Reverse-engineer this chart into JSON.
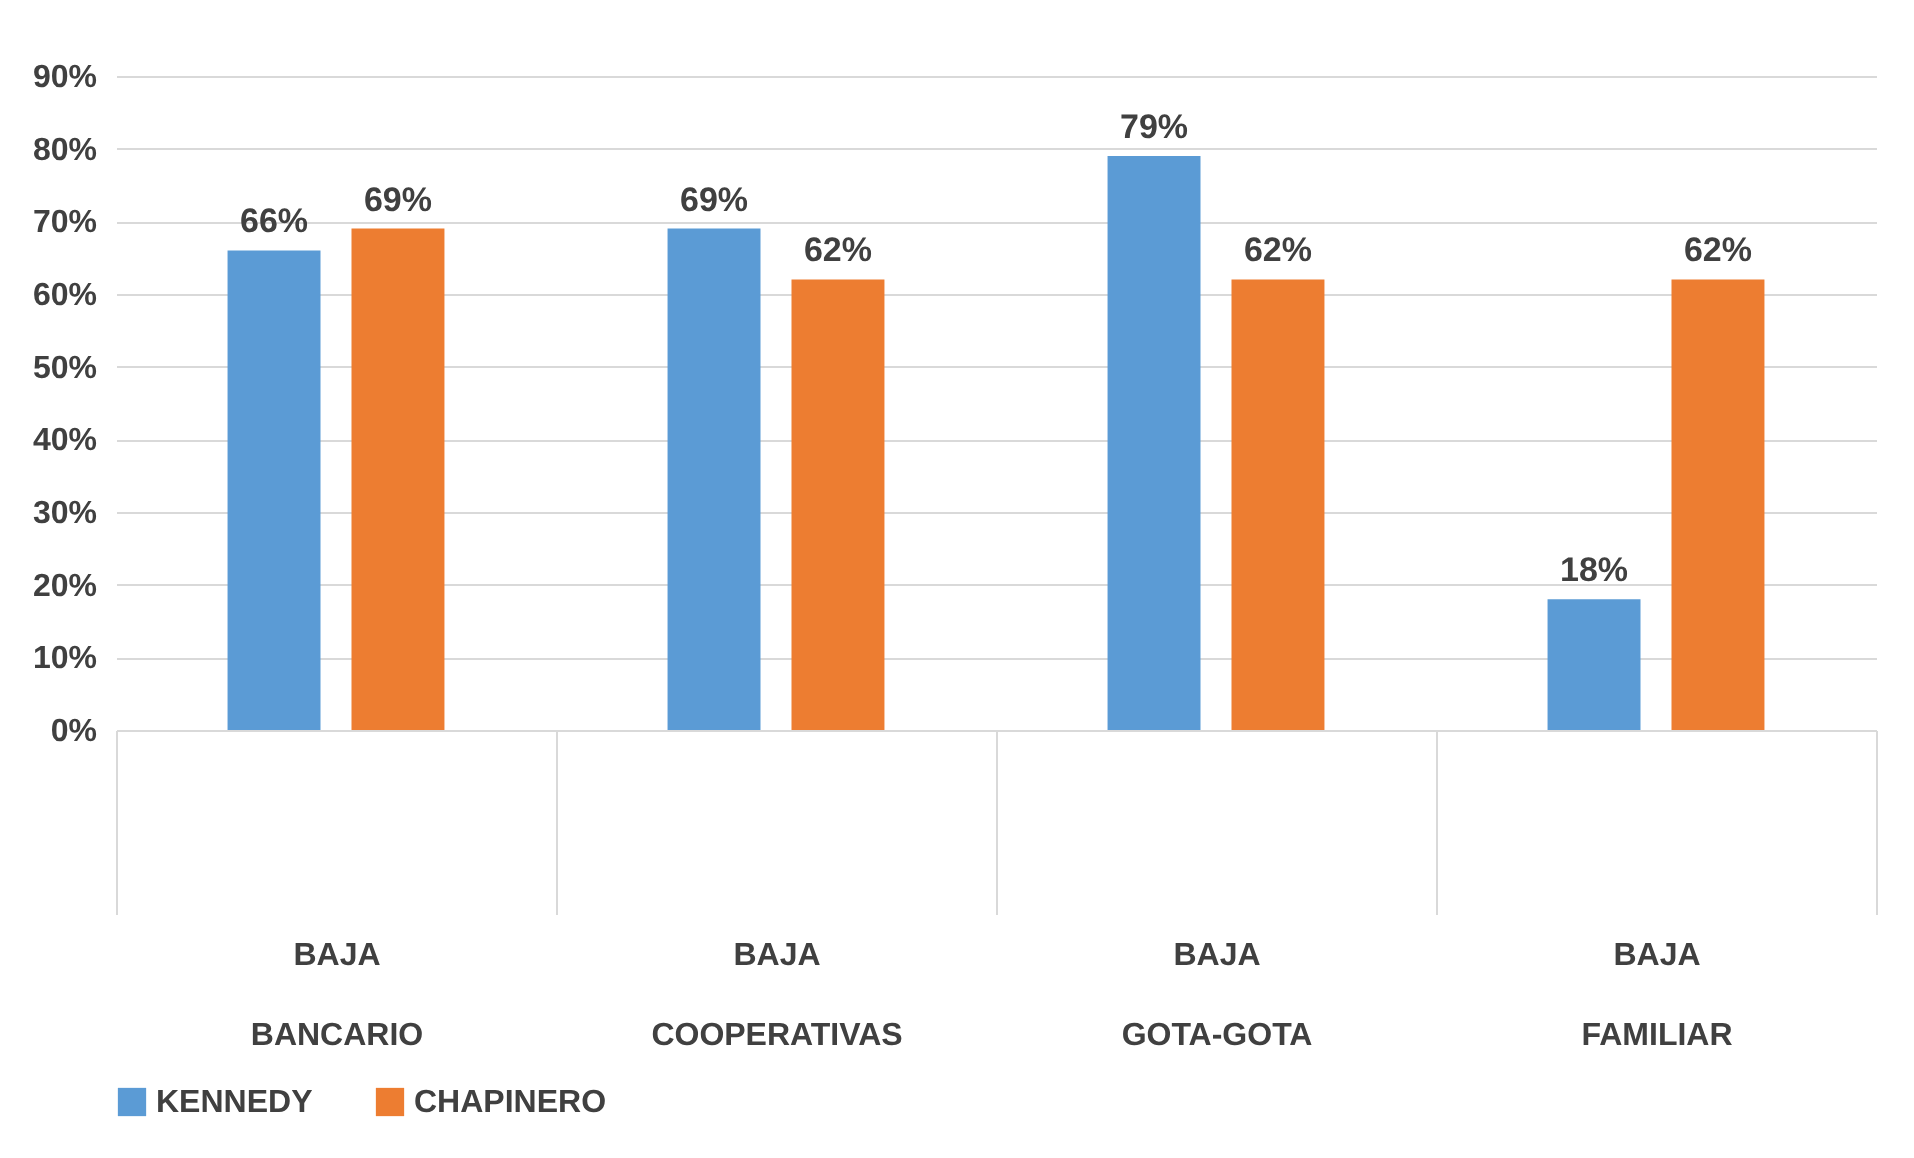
{
  "chart_data": {
    "type": "bar",
    "categories": [
      "BAJA\nBANCARIO",
      "BAJA\nCOOPERATIVAS",
      "BAJA\nGOTA-GOTA",
      "BAJA\nFAMILIAR"
    ],
    "series": [
      {
        "name": "KENNEDY",
        "color": "#5b9bd5",
        "values": [
          66,
          69,
          79,
          18
        ],
        "value_labels": [
          "66%",
          "69%",
          "79%",
          "18%"
        ]
      },
      {
        "name": "CHAPINERO",
        "color": "#ed7d31",
        "values": [
          69,
          62,
          62,
          62
        ],
        "value_labels": [
          "69%",
          "62%",
          "62%",
          "62%"
        ]
      }
    ],
    "ylim": [
      0,
      90
    ],
    "yticks": [
      {
        "value": 0,
        "label": "0%"
      },
      {
        "value": 10,
        "label": "10%"
      },
      {
        "value": 20,
        "label": "20%"
      },
      {
        "value": 30,
        "label": "30%"
      },
      {
        "value": 40,
        "label": "40%"
      },
      {
        "value": 50,
        "label": "50%"
      },
      {
        "value": 60,
        "label": "60%"
      },
      {
        "value": 70,
        "label": "70%"
      },
      {
        "value": 80,
        "label": "80%"
      },
      {
        "value": 90,
        "label": "90%"
      }
    ],
    "grid": "y",
    "legend": "bottom"
  }
}
